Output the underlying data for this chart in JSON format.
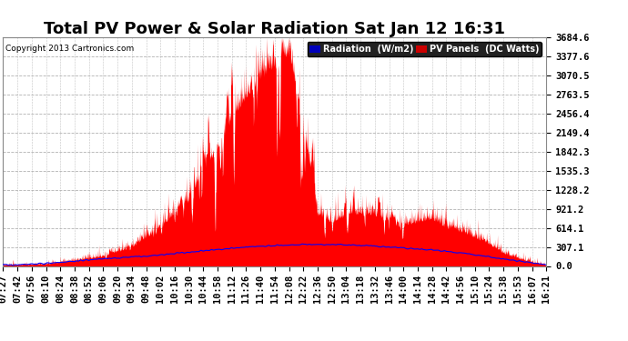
{
  "title": "Total PV Power & Solar Radiation Sat Jan 12 16:31",
  "copyright": "Copyright 2013 Cartronics.com",
  "yticks": [
    0.0,
    307.1,
    614.1,
    921.2,
    1228.2,
    1535.3,
    1842.3,
    2149.4,
    2456.4,
    2763.5,
    3070.5,
    3377.6,
    3684.6
  ],
  "ymax": 3684.6,
  "xtick_labels": [
    "07:27",
    "07:42",
    "07:56",
    "08:10",
    "08:24",
    "08:38",
    "08:52",
    "09:06",
    "09:20",
    "09:34",
    "09:48",
    "10:02",
    "10:16",
    "10:30",
    "10:44",
    "10:58",
    "11:12",
    "11:26",
    "11:40",
    "11:54",
    "12:08",
    "12:22",
    "12:36",
    "12:50",
    "13:04",
    "13:18",
    "13:32",
    "13:46",
    "14:00",
    "14:14",
    "14:28",
    "14:42",
    "14:56",
    "15:10",
    "15:24",
    "15:38",
    "15:53",
    "16:07",
    "16:21"
  ],
  "pv_fill_color": "#ff0000",
  "radiation_line_color": "#0000ff",
  "bg_color": "#ffffff",
  "grid_color": "#aaaaaa",
  "title_fontsize": 13,
  "tick_fontsize": 7.5,
  "legend_rad_bg": "#0000bb",
  "legend_pv_bg": "#cc0000"
}
